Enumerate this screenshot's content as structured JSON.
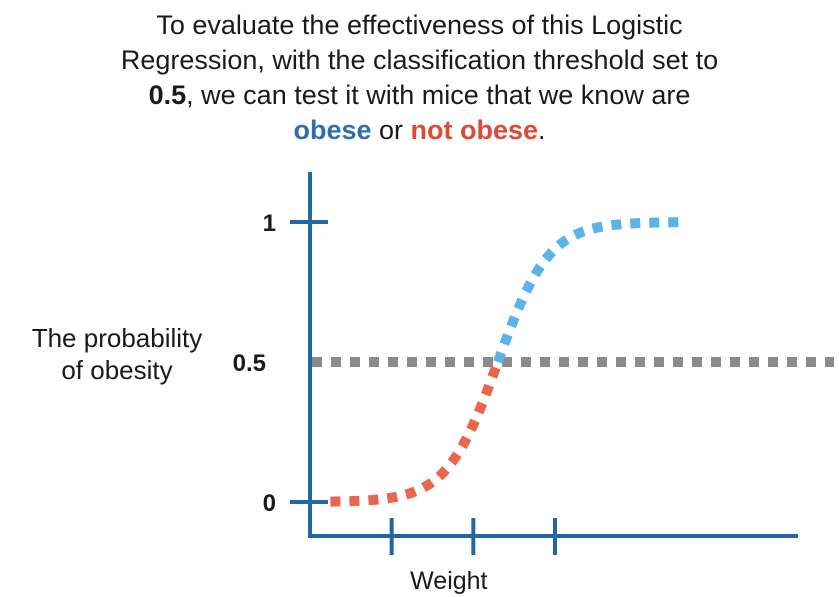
{
  "caption": {
    "line1": "To evaluate the effectiveness of this Logistic",
    "line2": "Regression, with the classification threshold set to",
    "line3_bold": "0.5",
    "line3_rest": ", we can test it with mice that we know are",
    "line4_obese": "obese",
    "line4_or": " or ",
    "line4_not_obese": "not obese",
    "line4_period": "."
  },
  "ylabel": {
    "line1": "The probability",
    "line2": "of obesity"
  },
  "colors": {
    "axis": "#2266a8",
    "obese": "#5ab4e8",
    "not_obese": "#e8654e",
    "threshold": "#8a8a8a",
    "obese_text": "#2f6fb0",
    "not_obese_text": "#dd4a35"
  },
  "chart_data": {
    "type": "line",
    "xlabel": "Weight",
    "ylabel": "The probability of obesity",
    "ylim": [
      0,
      1
    ],
    "xlim": [
      0,
      6
    ],
    "y_ticks": [
      {
        "value": 0,
        "label": "0"
      },
      {
        "value": 0.5,
        "label": "0.5"
      },
      {
        "value": 1,
        "label": "1"
      }
    ],
    "x_ticks": [
      1,
      2,
      3
    ],
    "threshold": 0.5,
    "curve": {
      "kind": "logistic",
      "center": 2.3,
      "steepness": 3.2,
      "x_range": [
        0.25,
        4.6
      ]
    },
    "series": [
      {
        "name": "not obese",
        "segment": "below-threshold",
        "style": "dotted"
      },
      {
        "name": "obese",
        "segment": "above-threshold",
        "style": "dotted"
      }
    ],
    "grid": false,
    "legend": "none"
  }
}
